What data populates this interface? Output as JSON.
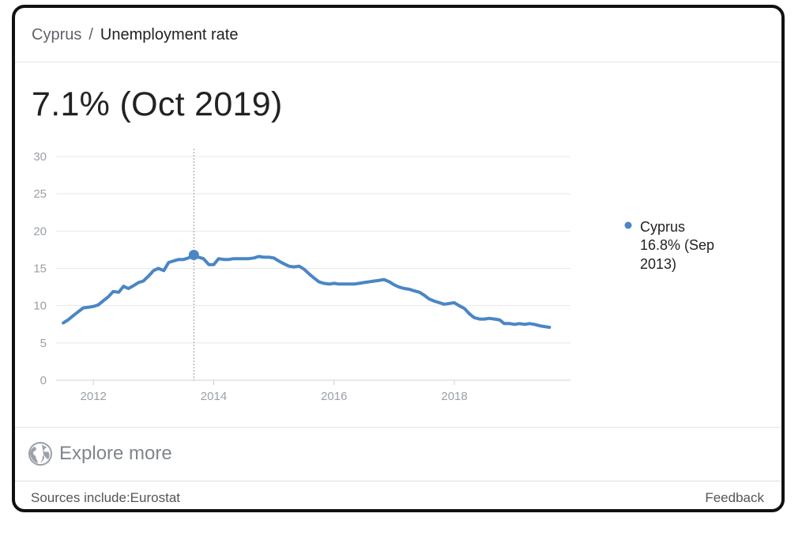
{
  "breadcrumb": {
    "country": "Cyprus",
    "separator": "/",
    "topic": "Unemployment rate"
  },
  "headline": "7.1% (Oct 2019)",
  "legend": {
    "series_name": "Cyprus",
    "hover_value_line1": "16.8% (Sep",
    "hover_value_line2": "2013)"
  },
  "explore_more": "Explore more",
  "footer": {
    "sources": "Sources include:Eurostat",
    "feedback": "Feedback"
  },
  "colors": {
    "series": "#4a86c5",
    "grid": "#e8e8e8",
    "axis_text": "#9aa0a6"
  },
  "chart_data": {
    "type": "line",
    "xlabel": "",
    "ylabel": "",
    "ylim": [
      0,
      30
    ],
    "yticks": [
      0,
      5,
      10,
      15,
      20,
      25,
      30
    ],
    "xticks": [
      "2012",
      "2014",
      "2016",
      "2018"
    ],
    "xtick_values": [
      2012,
      2014,
      2016,
      2018
    ],
    "xlim": [
      2011.38,
      2019.93
    ],
    "grid": true,
    "legend_position": "right",
    "highlight": {
      "x": 2013.67,
      "y": 16.8,
      "label": "Sep 2013"
    },
    "series": [
      {
        "name": "Cyprus",
        "x": [
          2011.5,
          2011.58,
          2011.67,
          2011.75,
          2011.83,
          2011.92,
          2012.0,
          2012.08,
          2012.17,
          2012.25,
          2012.33,
          2012.42,
          2012.5,
          2012.58,
          2012.67,
          2012.75,
          2012.83,
          2012.92,
          2013.0,
          2013.08,
          2013.17,
          2013.25,
          2013.33,
          2013.42,
          2013.5,
          2013.58,
          2013.67,
          2013.75,
          2013.83,
          2013.92,
          2014.0,
          2014.08,
          2014.17,
          2014.25,
          2014.33,
          2014.42,
          2014.5,
          2014.58,
          2014.67,
          2014.75,
          2014.83,
          2014.92,
          2015.0,
          2015.08,
          2015.17,
          2015.25,
          2015.33,
          2015.42,
          2015.5,
          2015.58,
          2015.67,
          2015.75,
          2015.83,
          2015.92,
          2016.0,
          2016.08,
          2016.17,
          2016.25,
          2016.33,
          2016.42,
          2016.5,
          2016.58,
          2016.67,
          2016.75,
          2016.83,
          2016.92,
          2017.0,
          2017.08,
          2017.17,
          2017.25,
          2017.33,
          2017.42,
          2017.5,
          2017.58,
          2017.67,
          2017.75,
          2017.83,
          2017.92,
          2018.0,
          2018.08,
          2018.17,
          2018.25,
          2018.33,
          2018.42,
          2018.5,
          2018.58,
          2018.67,
          2018.75,
          2018.83,
          2018.92,
          2019.0,
          2019.08,
          2019.17,
          2019.25,
          2019.33,
          2019.42,
          2019.5,
          2019.58
        ],
        "values": [
          7.7,
          8.1,
          8.7,
          9.2,
          9.7,
          9.8,
          9.9,
          10.1,
          10.7,
          11.2,
          11.9,
          11.8,
          12.6,
          12.3,
          12.7,
          13.1,
          13.3,
          14.0,
          14.7,
          15.0,
          14.7,
          15.8,
          16.0,
          16.2,
          16.2,
          16.4,
          16.8,
          16.5,
          16.3,
          15.5,
          15.5,
          16.3,
          16.2,
          16.2,
          16.3,
          16.3,
          16.3,
          16.3,
          16.4,
          16.6,
          16.5,
          16.5,
          16.4,
          16.0,
          15.6,
          15.3,
          15.2,
          15.3,
          14.9,
          14.3,
          13.7,
          13.2,
          13.0,
          12.9,
          13.0,
          12.9,
          12.9,
          12.9,
          12.9,
          13.0,
          13.1,
          13.2,
          13.3,
          13.4,
          13.5,
          13.2,
          12.8,
          12.5,
          12.3,
          12.2,
          12.0,
          11.8,
          11.4,
          10.9,
          10.6,
          10.4,
          10.2,
          10.3,
          10.4,
          10.0,
          9.6,
          8.9,
          8.4,
          8.2,
          8.2,
          8.3,
          8.2,
          8.1,
          7.6,
          7.6,
          7.5,
          7.6,
          7.5,
          7.6,
          7.5,
          7.3,
          7.2,
          7.1
        ]
      }
    ]
  }
}
